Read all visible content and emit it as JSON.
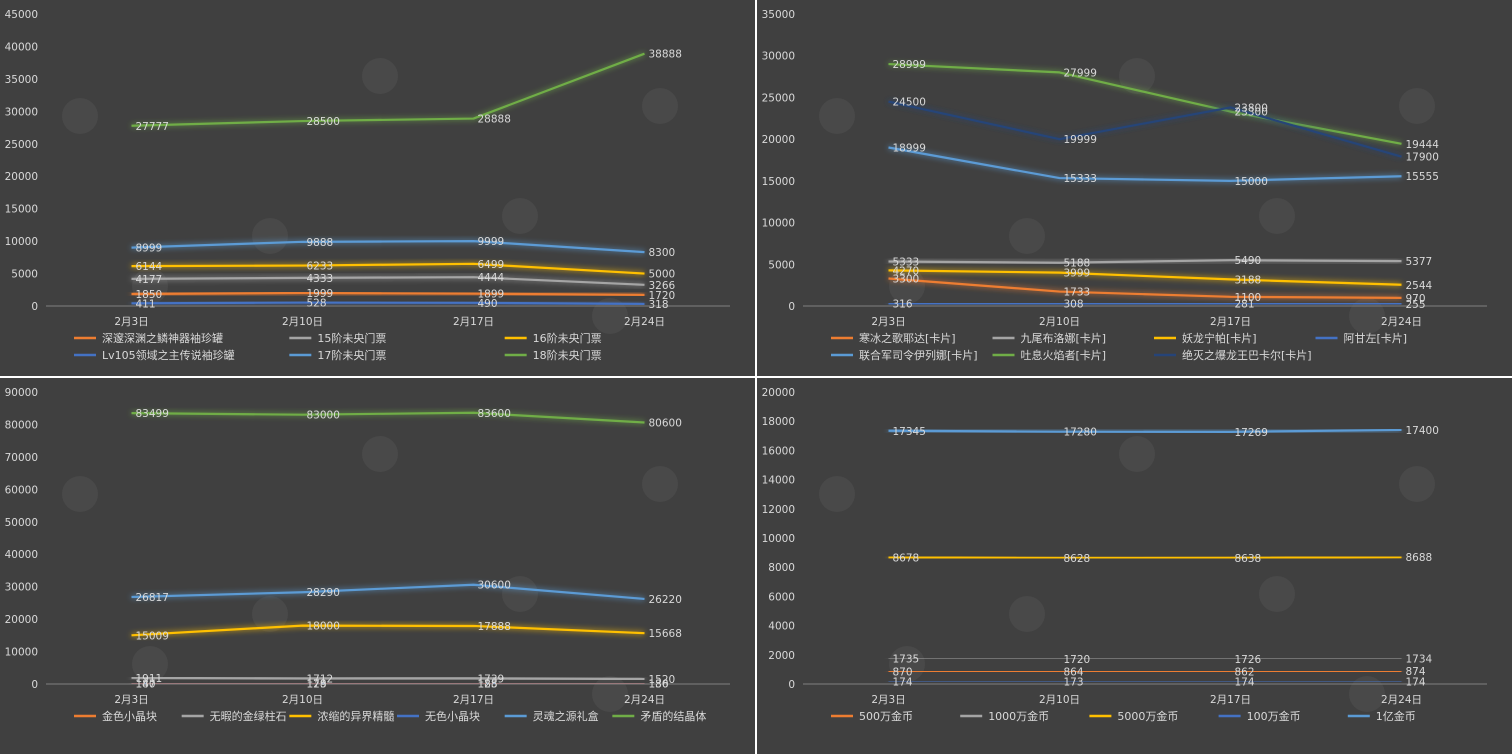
{
  "chart_data": [
    {
      "type": "line",
      "categories": [
        "2月3日",
        "2月10日",
        "2月17日",
        "2月24日"
      ],
      "ylim": [
        0,
        45000
      ],
      "ystep": 5000,
      "grid": false,
      "legend_position": "bottom",
      "legend_cols": 3,
      "series": [
        {
          "name": "深邃深渊之鳞神器袖珍罐",
          "color": "#ed7d31",
          "values": [
            1850,
            1999,
            1899,
            1720
          ]
        },
        {
          "name": "15阶未央门票",
          "color": "#a5a5a5",
          "values": [
            4177,
            4333,
            4444,
            3266
          ]
        },
        {
          "name": "16阶未央门票",
          "color": "#ffc000",
          "values": [
            6144,
            6233,
            6499,
            5000
          ]
        },
        {
          "name": "Lv105领域之主传说袖珍罐",
          "color": "#4472c4",
          "values": [
            411,
            528,
            490,
            318
          ]
        },
        {
          "name": "17阶未央门票",
          "color": "#5b9bd5",
          "values": [
            8999,
            9888,
            9999,
            8300
          ]
        },
        {
          "name": "18阶未央门票",
          "color": "#70ad47",
          "values": [
            27777,
            28500,
            28888,
            38888
          ]
        }
      ]
    },
    {
      "type": "line",
      "categories": [
        "2月3日",
        "2月10日",
        "2月17日",
        "2月24日"
      ],
      "ylim": [
        0,
        35000
      ],
      "ystep": 5000,
      "grid": false,
      "legend_position": "bottom",
      "legend_cols": 4,
      "series": [
        {
          "name": "寒冰之歌耶达[卡片]",
          "color": "#ed7d31",
          "values": [
            3300,
            1733,
            1100,
            970
          ]
        },
        {
          "name": "九尾布洛娜[卡片]",
          "color": "#a5a5a5",
          "values": [
            5333,
            5188,
            5490,
            5377
          ]
        },
        {
          "name": "妖龙宁帕[卡片]",
          "color": "#ffc000",
          "values": [
            4270,
            3999,
            3188,
            2544
          ]
        },
        {
          "name": "阿甘左[卡片]",
          "color": "#4472c4",
          "values": [
            316,
            308,
            281,
            255
          ]
        },
        {
          "name": "联合军司令伊列娜[卡片]",
          "color": "#5b9bd5",
          "values": [
            18999,
            15333,
            15000,
            15555
          ]
        },
        {
          "name": "吐息火焰者[卡片]",
          "color": "#70ad47",
          "values": [
            28999,
            27999,
            23300,
            19444
          ]
        },
        {
          "name": "绝灭之爆龙王巴卡尔[卡片]",
          "color": "#264478",
          "values": [
            24500,
            19999,
            23800,
            17900
          ]
        }
      ]
    },
    {
      "type": "line",
      "categories": [
        "2月3日",
        "2月10日",
        "2月17日",
        "2月24日"
      ],
      "ylim": [
        0,
        90000
      ],
      "ystep": 10000,
      "grid": false,
      "legend_position": "bottom",
      "legend_cols": 6,
      "series": [
        {
          "name": "金色小晶块",
          "color": "#ed7d31",
          "values": [
            187,
            178,
            188,
            186
          ]
        },
        {
          "name": "无暇的金绿柱石",
          "color": "#a5a5a5",
          "values": [
            1911,
            1712,
            1739,
            1520
          ]
        },
        {
          "name": "浓缩的异界精髓",
          "color": "#ffc000",
          "values": [
            15009,
            18000,
            17888,
            15668
          ]
        },
        {
          "name": "无色小晶块",
          "color": "#4472c4",
          "values": [
            140,
            129,
            125,
            130
          ]
        },
        {
          "name": "灵魂之源礼盒",
          "color": "#5b9bd5",
          "values": [
            26817,
            28290,
            30600,
            26220
          ]
        },
        {
          "name": "矛盾的结晶体",
          "color": "#70ad47",
          "values": [
            83499,
            83000,
            83600,
            80600
          ]
        }
      ]
    },
    {
      "type": "line",
      "categories": [
        "2月3日",
        "2月10日",
        "2月17日",
        "2月24日"
      ],
      "ylim": [
        0,
        20000
      ],
      "ystep": 2000,
      "grid": false,
      "legend_position": "bottom",
      "legend_cols": 5,
      "series": [
        {
          "name": "500万金币",
          "color": "#ed7d31",
          "values": [
            870,
            864,
            862,
            874
          ]
        },
        {
          "name": "1000万金币",
          "color": "#a5a5a5",
          "values": [
            1735,
            1720,
            1726,
            1734
          ]
        },
        {
          "name": "5000万金币",
          "color": "#ffc000",
          "values": [
            8678,
            8628,
            8638,
            8688
          ]
        },
        {
          "name": "100万金币",
          "color": "#4472c4",
          "values": [
            174,
            173,
            174,
            174
          ]
        },
        {
          "name": "1亿金币",
          "color": "#5b9bd5",
          "values": [
            17345,
            17280,
            17269,
            17400
          ]
        }
      ]
    }
  ]
}
